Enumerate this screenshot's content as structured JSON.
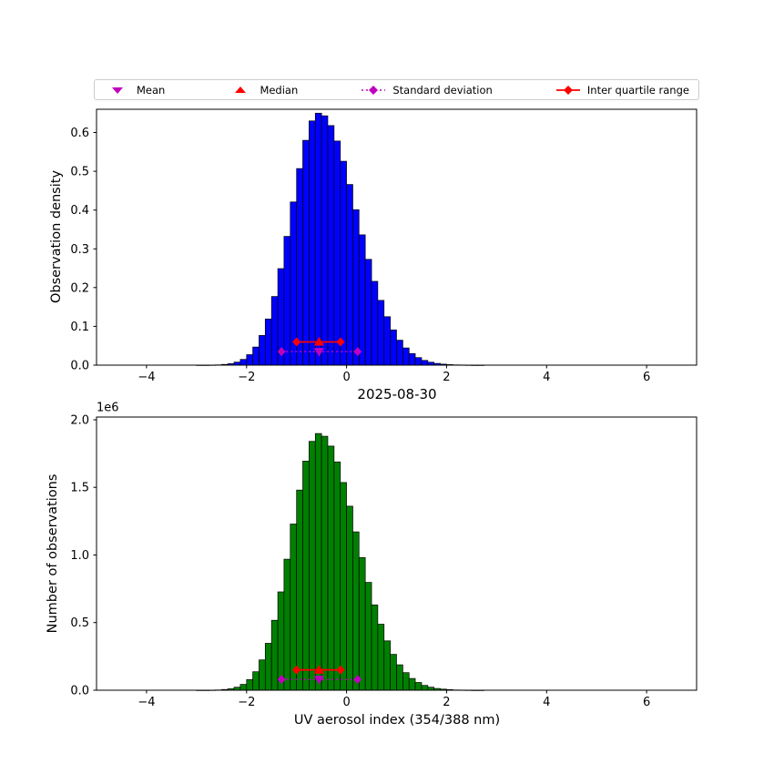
{
  "figure": {
    "background": "#FFFFFF"
  },
  "legend": {
    "items": [
      {
        "label": "Mean",
        "marker": "triangle-down",
        "color": "#BF00BF"
      },
      {
        "label": "Median",
        "marker": "triangle-up",
        "color": "#FF0000"
      },
      {
        "label": "Standard deviation",
        "marker": "diamond-dotted-line",
        "color": "#BF00BF"
      },
      {
        "label": "Inter quartile range",
        "marker": "diamond-solid-line",
        "color": "#FF0000"
      }
    ]
  },
  "chart_data": [
    {
      "type": "bar",
      "name": "observation-density-histogram",
      "ylabel": "Observation density",
      "bar_color": "#0000FF",
      "bar_edge_color": "#000000",
      "grid": false,
      "xlim": [
        -5,
        7
      ],
      "ylim": [
        0,
        0.66
      ],
      "xticks": [
        -4,
        -2,
        0,
        2,
        4,
        6
      ],
      "yticks": [
        0.0,
        0.1,
        0.2,
        0.3,
        0.4,
        0.5,
        0.6
      ],
      "ytick_labels": [
        "0.0",
        "0.1",
        "0.2",
        "0.3",
        "0.4",
        "0.5",
        "0.6"
      ],
      "bin_start": -3.0,
      "bin_width": 0.125,
      "values": [
        0.0001,
        0.0001,
        0.0003,
        0.0008,
        0.0018,
        0.0038,
        0.0077,
        0.0148,
        0.027,
        0.0468,
        0.0766,
        0.119,
        0.177,
        0.249,
        0.332,
        0.421,
        0.507,
        0.58,
        0.63,
        0.65,
        0.643,
        0.618,
        0.578,
        0.526,
        0.466,
        0.401,
        0.336,
        0.273,
        0.216,
        0.167,
        0.125,
        0.0909,
        0.0644,
        0.0445,
        0.0298,
        0.0194,
        0.0123,
        0.0076,
        0.0045,
        0.0027,
        0.0015,
        0.0008,
        0.0004,
        0.0002,
        0.0001,
        0.0001
      ],
      "markers": {
        "mean": {
          "x": -0.55,
          "y": 0.035,
          "color": "#BF00BF"
        },
        "median": {
          "x": -0.55,
          "y": 0.06,
          "color": "#FF0000"
        },
        "std": {
          "x_low": -1.3,
          "x_high": 0.22,
          "y": 0.035,
          "color": "#BF00BF"
        },
        "iqr": {
          "x_low": -1.0,
          "x_high": -0.12,
          "y": 0.06,
          "color": "#FF0000"
        }
      }
    },
    {
      "type": "bar",
      "name": "observation-count-histogram",
      "title": "2025-08-30",
      "xlabel": "UV aerosol index (354/388 nm)",
      "ylabel": "Number of observations",
      "offset_text": "1e6",
      "bar_color": "#008000",
      "bar_edge_color": "#000000",
      "grid": false,
      "xlim": [
        -5,
        7
      ],
      "ylim": [
        0,
        2020000
      ],
      "xticks": [
        -4,
        -2,
        0,
        2,
        4,
        6
      ],
      "yticks": [
        0,
        500000,
        1000000,
        1500000,
        2000000
      ],
      "ytick_labels": [
        "0.0",
        "0.5",
        "1.0",
        "1.5",
        "2.0"
      ],
      "bin_start": -3.0,
      "bin_width": 0.125,
      "values": [
        300,
        300,
        900,
        2300,
        5300,
        11000,
        22000,
        43000,
        79000,
        137000,
        224000,
        347000,
        517000,
        727000,
        969000,
        1229000,
        1480000,
        1694000,
        1840000,
        1898000,
        1878000,
        1805000,
        1688000,
        1536000,
        1361000,
        1171000,
        981000,
        797000,
        631000,
        488000,
        365000,
        265000,
        188000,
        130000,
        87000,
        57000,
        36000,
        22000,
        13000,
        7900,
        4400,
        2300,
        1200,
        600,
        300,
        300
      ],
      "markers": {
        "mean": {
          "x": -0.55,
          "y": 80000,
          "color": "#BF00BF"
        },
        "median": {
          "x": -0.55,
          "y": 150000,
          "color": "#FF0000"
        },
        "std": {
          "x_low": -1.3,
          "x_high": 0.22,
          "y": 80000,
          "color": "#BF00BF"
        },
        "iqr": {
          "x_low": -1.0,
          "x_high": -0.12,
          "y": 150000,
          "color": "#FF0000"
        }
      }
    }
  ]
}
